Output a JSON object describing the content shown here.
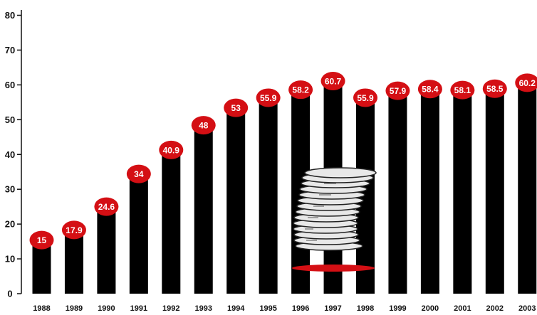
{
  "chart_data": {
    "type": "bar",
    "categories": [
      "1988",
      "1989",
      "1990",
      "1991",
      "1992",
      "1993",
      "1994",
      "1995",
      "1996",
      "1997",
      "1998",
      "1999",
      "2000",
      "2001",
      "2002",
      "2003"
    ],
    "values": [
      15,
      17.9,
      24.6,
      34,
      40.9,
      48,
      53,
      55.9,
      58.2,
      60.7,
      55.9,
      57.9,
      58.4,
      58.1,
      58.5,
      60.2
    ],
    "data_labels": [
      "15",
      "17.9",
      "24.6",
      "34",
      "40.9",
      "48",
      "53",
      "55.9",
      "58.2",
      "60.7",
      "55.9",
      "57.9",
      "58.4",
      "58.1",
      "58.5",
      "60.2"
    ],
    "yticks": [
      "0",
      "10",
      "20",
      "30",
      "40",
      "50",
      "60",
      "70",
      "80"
    ],
    "ylim": [
      0,
      80
    ],
    "grid": false,
    "legend": "none",
    "colors": {
      "bar": "#000000",
      "label_ellipse": "#d40f14",
      "label_text": "#ffffff",
      "axis": "#111111"
    }
  },
  "decoration": {
    "icon": "coin-stack-icon"
  }
}
